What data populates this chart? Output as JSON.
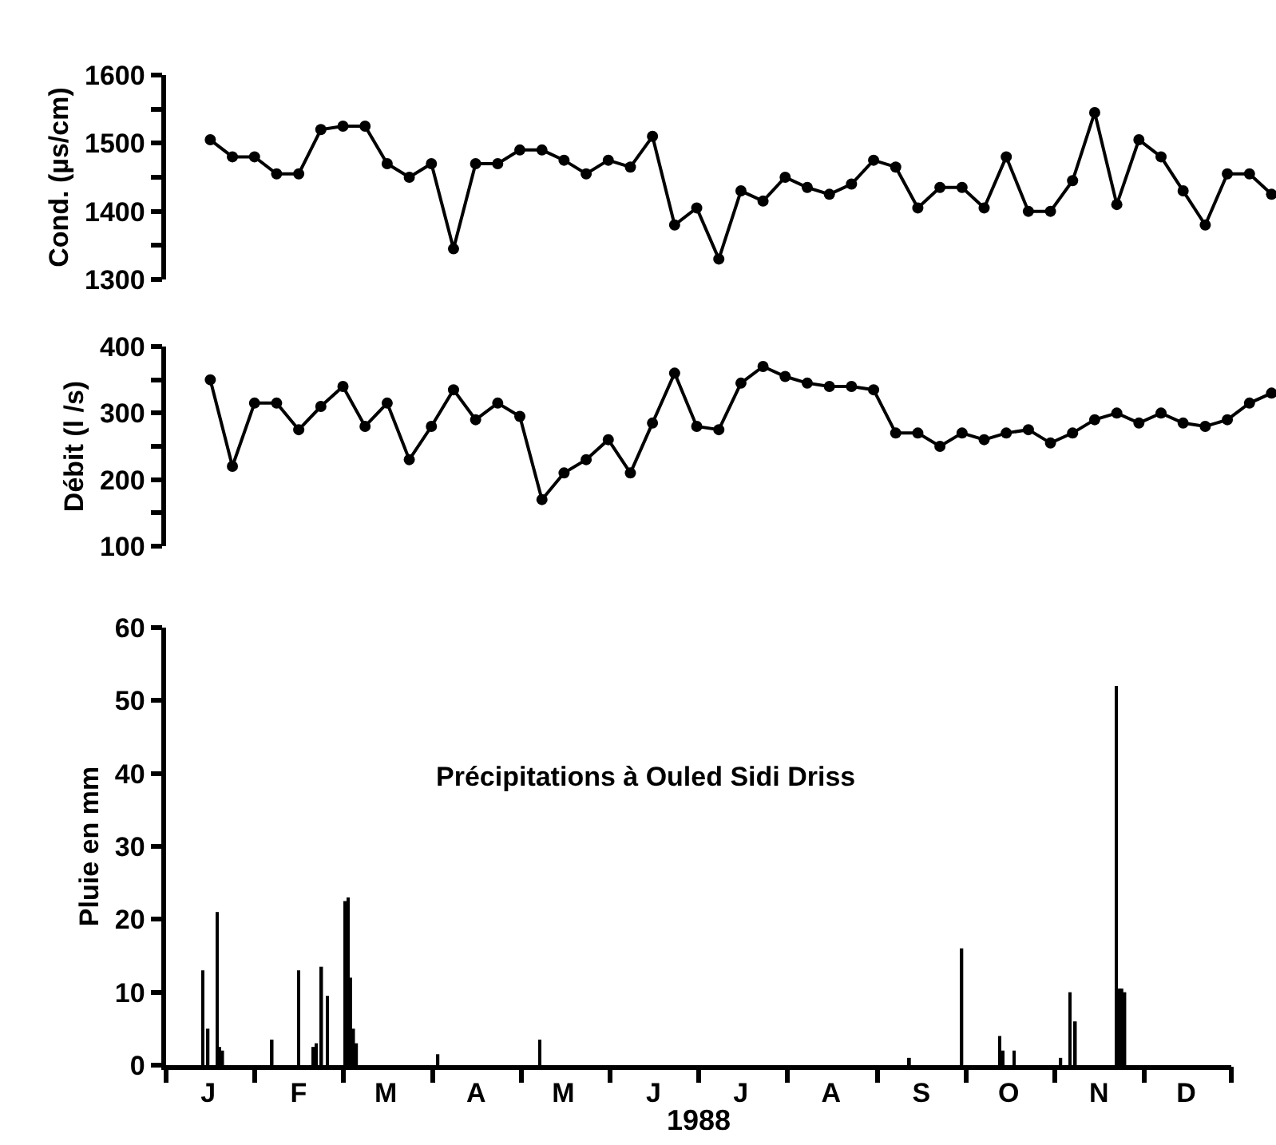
{
  "chart_data": [
    {
      "type": "line",
      "ylabel": "Cond. (µs/cm)",
      "marker": "circle",
      "line_style": "solid",
      "tick_labels": "y",
      "ylim": [
        1300,
        1600
      ],
      "yticks": [
        1300,
        1400,
        1500,
        1600
      ],
      "categories": [
        null,
        null,
        null,
        null,
        null,
        null,
        null,
        null,
        null,
        null,
        null,
        null,
        null,
        null,
        null,
        null,
        null,
        null,
        null,
        null,
        null,
        null,
        null,
        null,
        null,
        null,
        null,
        null,
        null,
        null,
        null,
        null,
        null,
        null,
        null,
        null,
        null,
        null,
        null,
        null,
        null,
        null,
        null,
        null,
        null,
        null,
        null,
        null,
        null
      ],
      "series": [
        {
          "color": "#000000",
          "values": [
            1505,
            1480,
            1480,
            1455,
            1455,
            1520,
            1525,
            1525,
            1470,
            1450,
            1470,
            1345,
            1470,
            1470,
            1490,
            1490,
            1475,
            1455,
            1475,
            1465,
            1510,
            1380,
            1405,
            1330,
            1430,
            1415,
            1450,
            1435,
            1425,
            1440,
            1475,
            1465,
            1405,
            1435,
            1435,
            1405,
            1480,
            1400,
            1400,
            1445,
            1545,
            1410,
            1505,
            1480,
            1430,
            1380,
            1455,
            1455,
            1425
          ]
        }
      ]
    },
    {
      "type": "line",
      "ylabel": "Débit (l /s)",
      "marker": "circle",
      "line_style": "solid",
      "tick_labels": "y",
      "ylim": [
        100,
        400
      ],
      "yticks": [
        100,
        200,
        300,
        400
      ],
      "categories": [
        null,
        null,
        null,
        null,
        null,
        null,
        null,
        null,
        null,
        null,
        null,
        null,
        null,
        null,
        null,
        null,
        null,
        null,
        null,
        null,
        null,
        null,
        null,
        null,
        null,
        null,
        null,
        null,
        null,
        null,
        null,
        null,
        null,
        null,
        null,
        null,
        null,
        null,
        null,
        null,
        null,
        null,
        null,
        null,
        null,
        null,
        null,
        null,
        null
      ],
      "series": [
        {
          "color": "#000000",
          "values": [
            350,
            220,
            315,
            315,
            275,
            310,
            340,
            280,
            315,
            230,
            280,
            335,
            290,
            315,
            295,
            170,
            210,
            230,
            260,
            210,
            285,
            360,
            280,
            275,
            345,
            370,
            355,
            345,
            340,
            340,
            335,
            270,
            270,
            250,
            270,
            260,
            270,
            275,
            255,
            270,
            290,
            300,
            285,
            300,
            285,
            280,
            290,
            315,
            330
          ]
        }
      ]
    },
    {
      "type": "bar",
      "ylabel": "Pluie en mm",
      "xlabel": "1988",
      "annotations": [
        "Précipitations à Ouled Sidi Driss"
      ],
      "ylim": [
        0,
        60
      ],
      "yticks": [
        0,
        10,
        20,
        30,
        40,
        50,
        60
      ],
      "categories": [
        null,
        null,
        null,
        null,
        null,
        null,
        null,
        null,
        null,
        null,
        null,
        null,
        null,
        null,
        "J",
        null,
        null,
        null,
        null,
        null,
        null,
        null,
        null,
        null,
        null,
        null,
        null,
        null,
        null,
        null,
        null,
        null,
        null,
        null,
        null,
        null,
        null,
        null,
        null,
        null,
        null,
        null,
        null,
        null,
        null,
        "F",
        null,
        null,
        null,
        null,
        null,
        null,
        null,
        null,
        null,
        null,
        null,
        null,
        null,
        null,
        null,
        null,
        null,
        null,
        null,
        null,
        null,
        null,
        null,
        null,
        null,
        null,
        null,
        null,
        null,
        "M",
        null,
        null,
        null,
        null,
        null,
        null,
        null,
        null,
        null,
        null,
        null,
        null,
        null,
        null,
        null,
        null,
        null,
        null,
        null,
        null,
        null,
        null,
        null,
        null,
        null,
        null,
        null,
        null,
        null,
        null,
        "A",
        null,
        null,
        null,
        null,
        null,
        null,
        null,
        null,
        null,
        null,
        null,
        null,
        null,
        null,
        null,
        null,
        null,
        null,
        null,
        null,
        null,
        null,
        null,
        null,
        null,
        null,
        null,
        null,
        null,
        "M",
        null,
        null,
        null,
        null,
        null,
        null,
        null,
        null,
        null,
        null,
        null,
        null,
        null,
        null,
        null,
        null,
        null,
        null,
        null,
        null,
        null,
        null,
        null,
        null,
        null,
        null,
        null,
        null,
        null,
        null,
        "J",
        null,
        null,
        null,
        null,
        null,
        null,
        null,
        null,
        null,
        null,
        null,
        null,
        null,
        null,
        null,
        null,
        null,
        null,
        null,
        null,
        null,
        null,
        null,
        null,
        null,
        null,
        null,
        null,
        null,
        "J",
        null,
        null,
        null,
        null,
        null,
        null,
        null,
        null,
        null,
        null,
        null,
        null,
        null,
        null,
        null,
        null,
        null,
        null,
        null,
        null,
        null,
        null,
        null,
        null,
        null,
        null,
        null,
        null,
        null,
        null,
        "A",
        null,
        null,
        null,
        null,
        null,
        null,
        null,
        null,
        null,
        null,
        null,
        null,
        null,
        null,
        null,
        null,
        null,
        null,
        null,
        null,
        null,
        null,
        null,
        null,
        null,
        null,
        null,
        null,
        null,
        null,
        "S",
        null,
        null,
        null,
        null,
        null,
        null,
        null,
        null,
        null,
        null,
        null,
        null,
        null,
        null,
        null,
        null,
        null,
        null,
        null,
        null,
        null,
        null,
        null,
        null,
        null,
        null,
        null,
        null,
        null,
        "O",
        null,
        null,
        null,
        null,
        null,
        null,
        null,
        null,
        null,
        null,
        null,
        null,
        null,
        null,
        null,
        null,
        null,
        null,
        null,
        null,
        null,
        null,
        null,
        null,
        null,
        null,
        null,
        null,
        null,
        null,
        "N",
        null,
        null,
        null,
        null,
        null,
        null,
        null,
        null,
        null,
        null,
        null,
        null,
        null,
        null,
        null,
        null,
        null,
        null,
        null,
        null,
        null,
        null,
        null,
        null,
        null,
        null,
        null,
        null,
        null,
        "D",
        null,
        null,
        null,
        null,
        null,
        null,
        null,
        null,
        null,
        null,
        null,
        null,
        null,
        null,
        null
      ],
      "series": [
        {
          "color": "#000000",
          "values": [
            null,
            null,
            null,
            null,
            null,
            null,
            null,
            null,
            null,
            null,
            null,
            null,
            13,
            null,
            5,
            null,
            null,
            21,
            2.5,
            2,
            null,
            null,
            null,
            null,
            null,
            null,
            null,
            null,
            null,
            null,
            null,
            null,
            null,
            null,
            null,
            null,
            3.5,
            null,
            null,
            null,
            null,
            null,
            null,
            null,
            null,
            13,
            null,
            null,
            null,
            null,
            2.5,
            3,
            null,
            13.5,
            null,
            9.5,
            null,
            null,
            null,
            null,
            null,
            22.5,
            23,
            12,
            5,
            3,
            null,
            null,
            null,
            null,
            null,
            null,
            null,
            null,
            null,
            null,
            null,
            null,
            null,
            null,
            null,
            null,
            null,
            null,
            null,
            null,
            null,
            null,
            null,
            null,
            null,
            null,
            null,
            1.5,
            null,
            null,
            null,
            null,
            null,
            null,
            null,
            null,
            null,
            null,
            null,
            null,
            null,
            null,
            null,
            null,
            null,
            null,
            null,
            null,
            null,
            null,
            null,
            null,
            null,
            null,
            null,
            null,
            null,
            null,
            null,
            null,
            null,
            null,
            3.5,
            null,
            null,
            null,
            null,
            null,
            null,
            null,
            null,
            null,
            null,
            null,
            null,
            null,
            null,
            null,
            null,
            null,
            null,
            null,
            null,
            null,
            null,
            null,
            null,
            null,
            null,
            null,
            null,
            null,
            null,
            null,
            null,
            null,
            null,
            null,
            null,
            null,
            null,
            null,
            null,
            null,
            null,
            null,
            null,
            null,
            null,
            null,
            null,
            null,
            null,
            null,
            null,
            null,
            null,
            null,
            null,
            null,
            null,
            null,
            null,
            null,
            null,
            null,
            null,
            null,
            null,
            null,
            null,
            null,
            null,
            null,
            null,
            null,
            null,
            null,
            null,
            null,
            null,
            null,
            null,
            null,
            null,
            null,
            null,
            null,
            null,
            null,
            null,
            null,
            null,
            null,
            null,
            null,
            null,
            null,
            null,
            null,
            null,
            null,
            null,
            null,
            null,
            null,
            null,
            null,
            null,
            null,
            null,
            null,
            null,
            null,
            null,
            null,
            null,
            null,
            null,
            null,
            null,
            null,
            null,
            null,
            null,
            null,
            null,
            null,
            null,
            1,
            null,
            null,
            null,
            null,
            null,
            null,
            null,
            null,
            null,
            null,
            null,
            null,
            null,
            null,
            null,
            null,
            null,
            16,
            null,
            null,
            null,
            null,
            null,
            null,
            null,
            null,
            null,
            null,
            null,
            null,
            4,
            2,
            null,
            null,
            null,
            2,
            null,
            null,
            null,
            null,
            null,
            null,
            null,
            null,
            null,
            null,
            null,
            null,
            null,
            null,
            null,
            1,
            null,
            null,
            10,
            null,
            6,
            null,
            null,
            null,
            null,
            null,
            null,
            null,
            null,
            null,
            null,
            null,
            null,
            null,
            52,
            10.5,
            10.5,
            10,
            null,
            null,
            null,
            null,
            null,
            null,
            null,
            null,
            null,
            null,
            null,
            null,
            null,
            null,
            null,
            null,
            null,
            null,
            null,
            null,
            null,
            null,
            null,
            null,
            null,
            null,
            null,
            null,
            null,
            null,
            null,
            null,
            null,
            null,
            null,
            null
          ]
        }
      ]
    }
  ]
}
